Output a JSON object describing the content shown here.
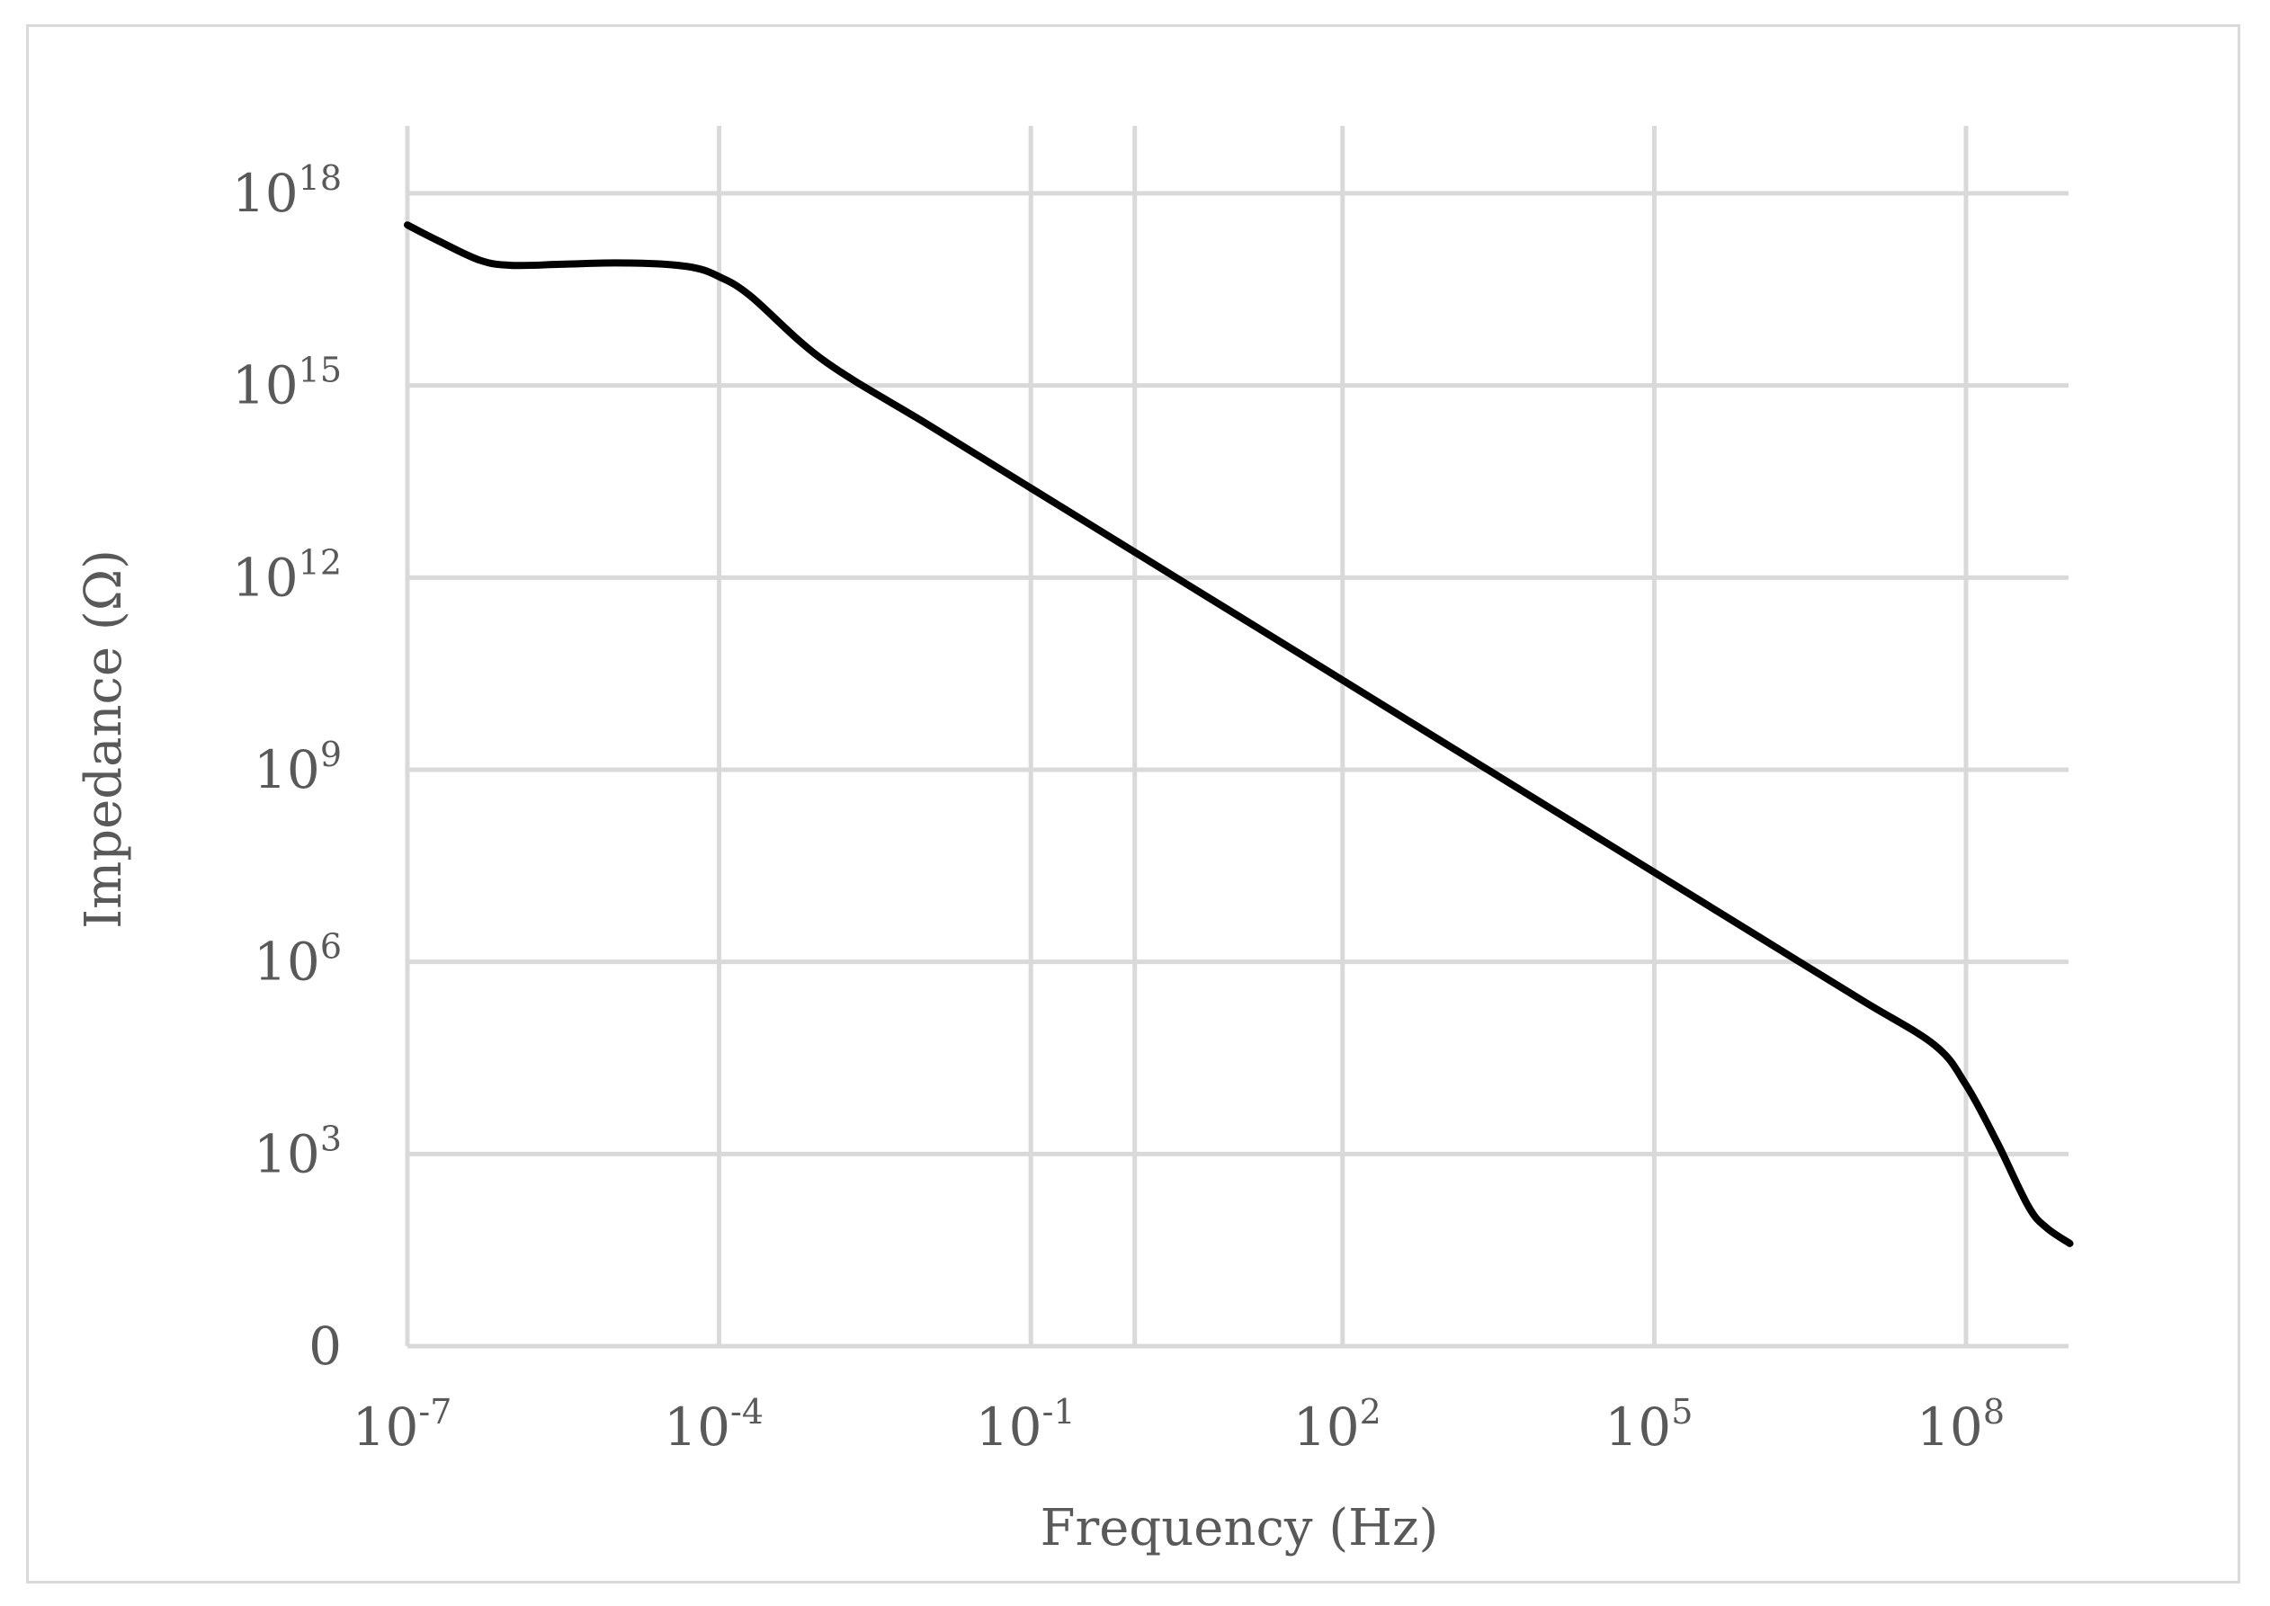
{
  "chart_data": {
    "type": "line",
    "title": "",
    "xlabel": "Frequency (Hz)",
    "ylabel": "Impedance (Ω)",
    "x_scale": "log",
    "y_scale": "log",
    "xlim": [
      1e-07,
      1000000000.0
    ],
    "ylim": [
      1,
      1e+18
    ],
    "grid": true,
    "legend": "none",
    "line_color": "#000000",
    "grid_color": "#d9d9d9",
    "text_color": "#595959",
    "x_ticks": [
      {
        "base": "10",
        "exp": "-7",
        "value": 1e-07
      },
      {
        "base": "10",
        "exp": "-4",
        "value": 0.0001
      },
      {
        "base": "10",
        "exp": "-1",
        "value": 0.1
      },
      {
        "base": "10",
        "exp": "2",
        "value": 100.0
      },
      {
        "base": "10",
        "exp": "5",
        "value": 100000.0
      },
      {
        "base": "10",
        "exp": "8",
        "value": 100000000.0
      }
    ],
    "x_extra_gridlines": [
      1
    ],
    "y_ticks": [
      {
        "base": "0",
        "exp": "",
        "value": 1
      },
      {
        "base": "10",
        "exp": "3",
        "value": 1000.0
      },
      {
        "base": "10",
        "exp": "6",
        "value": 1000000.0
      },
      {
        "base": "10",
        "exp": "9",
        "value": 1000000000.0
      },
      {
        "base": "10",
        "exp": "12",
        "value": 1000000000000.0
      },
      {
        "base": "10",
        "exp": "15",
        "value": 1000000000000000.0
      },
      {
        "base": "10",
        "exp": "18",
        "value": 1e+18
      }
    ],
    "series": [
      {
        "x": [
          1e-07,
          2e-07,
          5e-07,
          1e-06,
          3e-06,
          1e-05,
          3e-05,
          6e-05,
          0.0001,
          0.0002,
          0.001,
          0.01,
          0.1,
          1,
          10,
          100,
          1000.0,
          10000.0,
          100000.0,
          1000000.0,
          10000000.0,
          50000000.0,
          100000000.0,
          200000000.0,
          400000000.0,
          600000000.0,
          1000000000.0
        ],
        "y": [
          3.2e+17,
          1.8e+17,
          9e+16,
          7.5e+16,
          7.8e+16,
          8.2e+16,
          7.8e+16,
          6.8e+16,
          5e+16,
          2.5e+16,
          2500000000000000.0,
          250000000000000.0,
          25000000000000.0,
          2500000000000.0,
          250000000000.0,
          25000000000.0,
          2500000000.0,
          250000000.0,
          25000000.0,
          2500000.0,
          250000.0,
          50000.0,
          12000.0,
          1500.0,
          150.0,
          70.0,
          40.0
        ]
      }
    ]
  }
}
